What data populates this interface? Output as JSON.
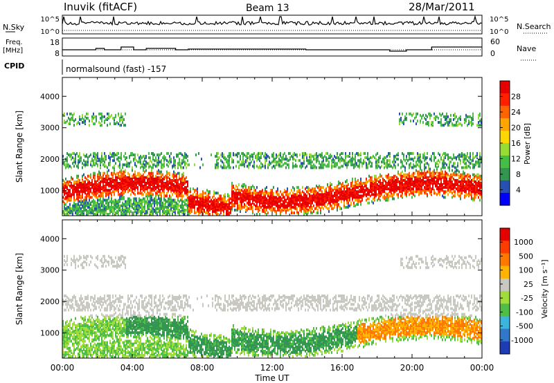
{
  "header": {
    "station": "Inuvik (fitACF)",
    "beam": "Beam 13",
    "date": "28/Mar/2011"
  },
  "strip_labels": {
    "nsky": "N.Sky",
    "nsearch": "N.Search",
    "freq_line1": "Freq.",
    "freq_line2": "[MHz]",
    "nave": "Nave",
    "cpid": "CPID",
    "cpid_value": "normalsound (fast) -157"
  },
  "strip_ticks": {
    "noise_left": [
      "10^5",
      "10^0"
    ],
    "noise_right": [
      "10^5",
      "10^0"
    ],
    "freq_left": [
      "18",
      "8"
    ],
    "freq_right": [
      "60",
      "0"
    ]
  },
  "chart_data": [
    {
      "type": "heatmap",
      "title": "",
      "xlabel": "Time UT",
      "ylabel": "Slant Range [km]",
      "x_ticks": [
        "00:00",
        "04:00",
        "08:00",
        "12:00",
        "16:00",
        "20:00",
        "00:00"
      ],
      "y_ticks": [
        1000,
        2000,
        3000,
        4000
      ],
      "ylim": [
        200,
        4600
      ],
      "colorbar": {
        "label": "Power [dB]",
        "ticks": [
          4,
          8,
          12,
          16,
          20,
          24,
          28
        ],
        "colors": [
          "#0000ff",
          "#2850b4",
          "#329650",
          "#46be46",
          "#96dc32",
          "#ffd700",
          "#ffa500",
          "#ff6400",
          "#ff2000",
          "#e60000"
        ]
      }
    },
    {
      "type": "heatmap",
      "title": "",
      "xlabel": "Time UT",
      "ylabel": "Slant Range [km]",
      "x_ticks": [
        "00:00",
        "04:00",
        "08:00",
        "12:00",
        "16:00",
        "20:00",
        "00:00"
      ],
      "y_ticks": [
        1000,
        2000,
        3000,
        4000
      ],
      "ylim": [
        200,
        4600
      ],
      "colorbar": {
        "label": "Velocity [m s⁻¹]",
        "ticks": [
          "1000",
          "500",
          "100",
          "25",
          "-25",
          "-100",
          "-500",
          "-1000"
        ],
        "colors": [
          "#1e3cb4",
          "#3278c8",
          "#3cb4dc",
          "#50be46",
          "#a0dc3c",
          "#c8c8c0",
          "#ffb400",
          "#ff7800",
          "#ff3c00",
          "#e60000"
        ]
      }
    }
  ]
}
